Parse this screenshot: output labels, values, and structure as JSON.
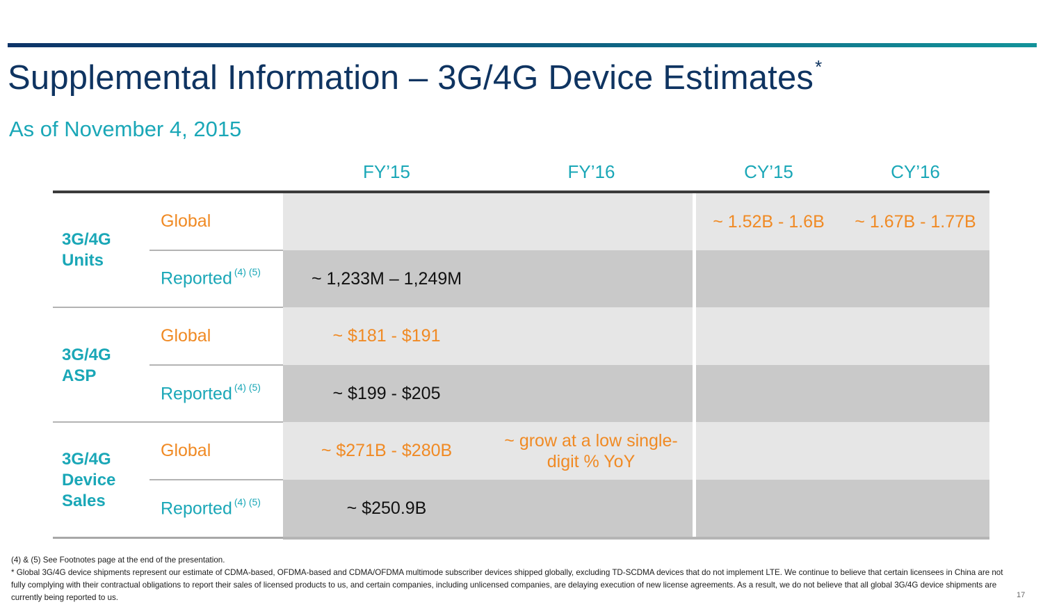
{
  "header": {
    "title": "Supplemental Information – 3G/4G Device Estimates",
    "title_marker": "*",
    "subtitle": "As of November 4, 2015"
  },
  "colors": {
    "title": "#0f3461",
    "accent_teal": "#1aa7b7",
    "accent_orange": "#f08a24",
    "cell_light": "#e6e6e6",
    "cell_dark": "#c9c9c9"
  },
  "table": {
    "columns": [
      "FY’15",
      "FY’16",
      "CY’15",
      "CY’16"
    ],
    "groups": [
      {
        "label_line1": "3G/4G",
        "label_line2": "Units",
        "label_line3": "",
        "rows": [
          {
            "label": "Global",
            "footnote": "",
            "fy15": "",
            "fy16": "",
            "cy15": "~ 1.52B - 1.6B",
            "cy16": "~ 1.67B - 1.77B"
          },
          {
            "label": "Reported",
            "footnote": "(4) (5)",
            "fy15": "~ 1,233M – 1,249M",
            "fy16": "",
            "cy15": "",
            "cy16": ""
          }
        ]
      },
      {
        "label_line1": "3G/4G",
        "label_line2": "ASP",
        "label_line3": "",
        "rows": [
          {
            "label": "Global",
            "footnote": "",
            "fy15": "~ $181 - $191",
            "fy16": "",
            "cy15": "",
            "cy16": ""
          },
          {
            "label": "Reported",
            "footnote": "(4) (5)",
            "fy15": "~ $199 - $205",
            "fy16": "",
            "cy15": "",
            "cy16": ""
          }
        ]
      },
      {
        "label_line1": "3G/4G",
        "label_line2": "Device",
        "label_line3": "Sales",
        "rows": [
          {
            "label": "Global",
            "footnote": "",
            "fy15": "~ $271B - $280B",
            "fy16": "~ grow at a low single-digit % YoY",
            "cy15": "",
            "cy16": ""
          },
          {
            "label": "Reported",
            "footnote": "(4) (5)",
            "fy15": "~ $250.9B",
            "fy16": "",
            "cy15": "",
            "cy16": ""
          }
        ]
      }
    ]
  },
  "footnotes": {
    "line1": "(4) & (5) See Footnotes page at the end of the presentation.",
    "line2": "* Global 3G/4G device shipments represent our estimate of CDMA-based, OFDMA-based and CDMA/OFDMA multimode subscriber devices shipped globally, excluding TD-SCDMA devices that do not implement LTE. We continue to believe that certain licensees in China are not fully complying with their contractual obligations to report their sales of licensed products to us, and certain companies, including unlicensed companies, are delaying execution of new license agreements. As a result, we do not believe that all global 3G/4G device shipments are currently being reported to us."
  },
  "page_number": "17"
}
